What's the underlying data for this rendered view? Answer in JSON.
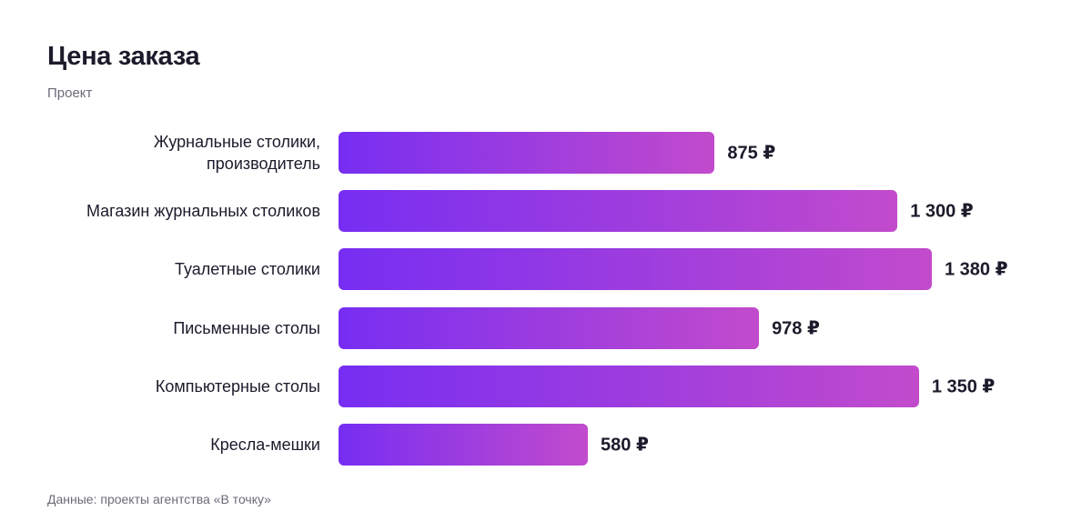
{
  "chart_data": {
    "type": "bar",
    "orientation": "horizontal",
    "title": "Цена заказа",
    "subtitle": "Проект",
    "categories": [
      "Журнальные столики, производитель",
      "Магазин журнальных столиков",
      "Туалетные столики",
      "Письменные столы",
      "Компьютерные столы",
      "Кресла-мешки"
    ],
    "values": [
      875,
      1300,
      1380,
      978,
      1350,
      580
    ],
    "value_labels": [
      "875 ₽",
      "1 300 ₽",
      "1 380 ₽",
      "978 ₽",
      "1 350 ₽",
      "580 ₽"
    ],
    "gradient": [
      "#772ef2",
      "#c24bcc"
    ],
    "source": "Данные: проекты агентства «В точку»"
  }
}
